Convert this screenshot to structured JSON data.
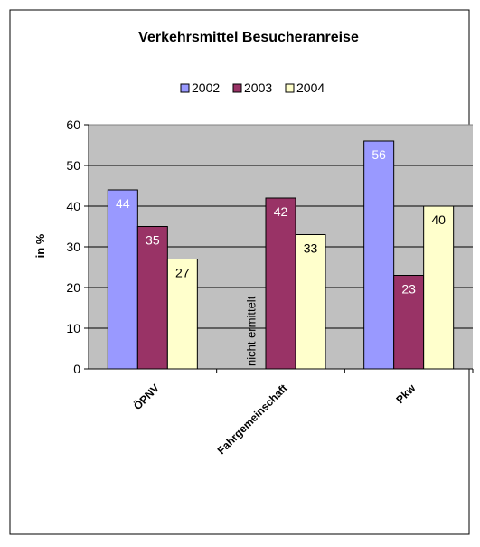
{
  "chart_data": {
    "type": "bar",
    "title": "Verkehrsmittel Besucheranreise",
    "xlabel": "",
    "ylabel": "in %",
    "ylim": [
      0,
      60
    ],
    "yticks": [
      0,
      10,
      20,
      30,
      40,
      50,
      60
    ],
    "grid": true,
    "legend_position": "top",
    "categories": [
      "ÖPNV",
      "Fahrgemeinschaft",
      "Pkw"
    ],
    "series": [
      {
        "name": "2002",
        "color": "#9999ff",
        "label_color": "#ffffff",
        "values": [
          44,
          null,
          56
        ]
      },
      {
        "name": "2003",
        "color": "#993366",
        "label_color": "#ffffff",
        "values": [
          35,
          42,
          23
        ]
      },
      {
        "name": "2004",
        "color": "#ffffcc",
        "label_color": "#000000",
        "values": [
          27,
          33,
          40
        ]
      }
    ],
    "annotations": [
      {
        "text": "nicht ermittelt",
        "category": "Fahrgemeinschaft",
        "series": "2002"
      }
    ],
    "plot_background": "#c0c0c0"
  }
}
